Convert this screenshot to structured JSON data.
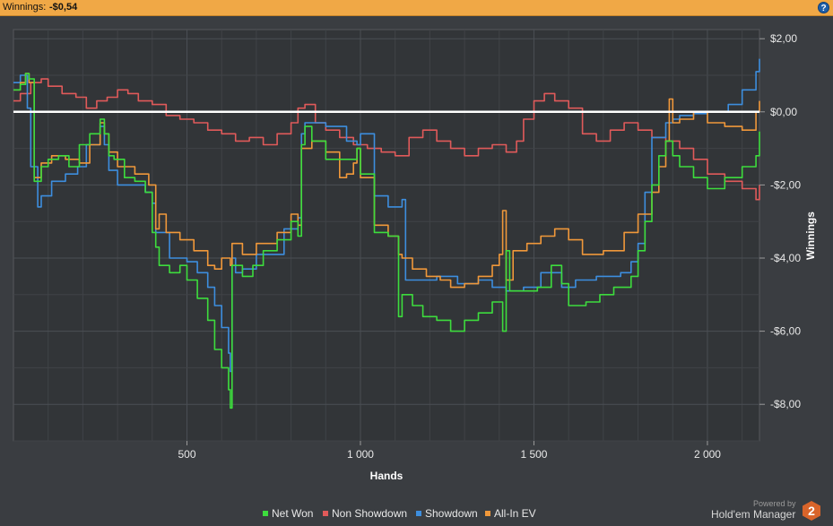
{
  "header": {
    "label": "Winnings:",
    "value": "-$0,54"
  },
  "help_icon": "?",
  "powered": {
    "line1": "Powered by",
    "line2": "Hold'em Manager",
    "logo_number": "2"
  },
  "colors": {
    "net_won": "#3ddc3d",
    "non_showdown": "#e05a5a",
    "showdown": "#3d8ede",
    "all_in_ev": "#f0983a",
    "zero_line": "#ffffff"
  },
  "chart_data": {
    "type": "line",
    "xlabel": "Hands",
    "ylabel": "Winnings",
    "xlim": [
      0,
      2150
    ],
    "ylim": [
      -9,
      2.25
    ],
    "x_ticks": [
      500,
      1000,
      1500,
      2000
    ],
    "x_tick_labels": [
      "500",
      "1 000",
      "1 500",
      "2 000"
    ],
    "y_ticks": [
      2,
      0,
      -2,
      -4,
      -6,
      -8
    ],
    "y_tick_labels": [
      "$2,00",
      "$0,00",
      "-$2,00",
      "-$4,00",
      "-$6,00",
      "-$8,00"
    ],
    "grid": true,
    "legend_position": "bottom",
    "series": [
      {
        "name": "Net Won",
        "color": "#3ddc3d",
        "x": [
          0,
          20,
          35,
          45,
          60,
          80,
          100,
          130,
          160,
          190,
          220,
          250,
          262,
          275,
          290,
          320,
          350,
          380,
          400,
          410,
          420,
          450,
          480,
          500,
          530,
          560,
          580,
          600,
          620,
          625,
          630,
          660,
          690,
          720,
          760,
          800,
          820,
          830,
          840,
          860,
          900,
          950,
          980,
          990,
          1000,
          1040,
          1080,
          1110,
          1120,
          1150,
          1180,
          1220,
          1260,
          1300,
          1340,
          1380,
          1410,
          1420,
          1430,
          1470,
          1510,
          1550,
          1580,
          1600,
          1620,
          1650,
          1690,
          1730,
          1780,
          1800,
          1820,
          1840,
          1860,
          1880,
          1900,
          1920,
          1960,
          2000,
          2050,
          2100,
          2140,
          2150
        ],
        "y": [
          0.6,
          0.75,
          1.05,
          0.9,
          -1.9,
          -1.5,
          -1.3,
          -1.2,
          -1.5,
          -0.9,
          -0.6,
          -0.2,
          -0.6,
          -1.2,
          -1.3,
          -1.8,
          -1.9,
          -2.2,
          -3.3,
          -3.7,
          -4.2,
          -4.4,
          -4.2,
          -4.6,
          -5.1,
          -5.7,
          -6.5,
          -7.0,
          -7.6,
          -8.1,
          -4.2,
          -4.5,
          -4.2,
          -3.8,
          -3.5,
          -3.0,
          -3.4,
          -0.9,
          -0.4,
          -0.8,
          -1.3,
          -1.3,
          -1.3,
          -1.0,
          -1.7,
          -3.3,
          -3.4,
          -5.6,
          -5.0,
          -5.3,
          -5.6,
          -5.7,
          -6.0,
          -5.7,
          -5.5,
          -5.2,
          -6.0,
          -3.8,
          -4.9,
          -4.9,
          -4.8,
          -4.2,
          -4.7,
          -5.3,
          -5.3,
          -5.2,
          -5.0,
          -4.8,
          -4.5,
          -3.8,
          -3.0,
          -2.0,
          -1.2,
          -0.8,
          -1.2,
          -1.5,
          -1.8,
          -2.1,
          -1.8,
          -1.5,
          -1.2,
          -0.54
        ]
      },
      {
        "name": "Non Showdown",
        "color": "#e05a5a",
        "x": [
          0,
          20,
          50,
          80,
          100,
          140,
          180,
          210,
          240,
          270,
          300,
          330,
          360,
          400,
          440,
          480,
          520,
          560,
          600,
          640,
          680,
          720,
          760,
          800,
          820,
          840,
          870,
          900,
          940,
          980,
          1020,
          1060,
          1100,
          1140,
          1180,
          1220,
          1260,
          1300,
          1340,
          1380,
          1420,
          1450,
          1470,
          1500,
          1530,
          1560,
          1600,
          1640,
          1680,
          1720,
          1760,
          1800,
          1840,
          1880,
          1920,
          1960,
          2000,
          2050,
          2100,
          2140,
          2150
        ],
        "y": [
          0.3,
          0.5,
          0.8,
          0.9,
          0.7,
          0.5,
          0.4,
          0.1,
          0.3,
          0.4,
          0.6,
          0.5,
          0.3,
          0.2,
          -0.1,
          -0.2,
          -0.3,
          -0.5,
          -0.6,
          -0.8,
          -0.7,
          -0.9,
          -0.6,
          -0.3,
          0.1,
          0.2,
          -0.3,
          -0.5,
          -0.7,
          -0.9,
          -1.0,
          -1.1,
          -1.2,
          -0.7,
          -0.5,
          -0.8,
          -1.0,
          -1.2,
          -1.0,
          -0.9,
          -1.1,
          -0.8,
          -0.2,
          0.3,
          0.5,
          0.3,
          0.1,
          -0.6,
          -0.8,
          -0.5,
          -0.3,
          -0.5,
          -0.7,
          -0.8,
          -1.0,
          -1.3,
          -1.7,
          -1.9,
          -2.1,
          -2.4,
          -2.0
        ]
      },
      {
        "name": "Showdown",
        "color": "#3d8ede",
        "x": [
          0,
          20,
          40,
          50,
          70,
          80,
          110,
          150,
          185,
          210,
          250,
          262,
          275,
          300,
          380,
          400,
          410,
          450,
          500,
          530,
          560,
          580,
          600,
          620,
          625,
          630,
          640,
          660,
          700,
          780,
          820,
          830,
          840,
          900,
          960,
          990,
          1000,
          1040,
          1080,
          1100,
          1120,
          1130,
          1180,
          1220,
          1280,
          1340,
          1380,
          1420,
          1470,
          1520,
          1580,
          1620,
          1680,
          1750,
          1780,
          1800,
          1820,
          1840,
          1880,
          1900,
          1920,
          1960,
          2000,
          2060,
          2100,
          2140,
          2150
        ],
        "y": [
          0.8,
          1.0,
          0.1,
          -1.5,
          -2.6,
          -2.3,
          -1.9,
          -1.7,
          -1.5,
          -0.9,
          -0.4,
          -0.9,
          -1.6,
          -2.0,
          -2.2,
          -2.5,
          -3.3,
          -4.0,
          -4.1,
          -4.4,
          -4.8,
          -5.3,
          -5.9,
          -6.6,
          -7.1,
          -4.0,
          -4.4,
          -4.3,
          -3.9,
          -3.2,
          -2.9,
          -0.6,
          -0.3,
          -0.4,
          -0.8,
          -0.9,
          -0.6,
          -2.3,
          -2.6,
          -2.6,
          -2.4,
          -4.6,
          -4.6,
          -4.5,
          -4.7,
          -4.6,
          -4.8,
          -4.9,
          -4.8,
          -4.4,
          -4.8,
          -4.6,
          -4.5,
          -4.4,
          -4.1,
          -3.6,
          -2.2,
          -0.7,
          -0.3,
          -0.2,
          -0.1,
          -0.05,
          0.0,
          0.2,
          0.6,
          1.1,
          1.45
        ]
      },
      {
        "name": "All-In EV",
        "color": "#f0983a",
        "x": [
          0,
          20,
          35,
          45,
          60,
          80,
          110,
          150,
          190,
          220,
          250,
          262,
          275,
          300,
          350,
          390,
          410,
          420,
          440,
          480,
          520,
          560,
          580,
          600,
          625,
          630,
          660,
          700,
          760,
          800,
          820,
          830,
          860,
          900,
          940,
          960,
          980,
          990,
          1000,
          1040,
          1080,
          1110,
          1120,
          1150,
          1190,
          1230,
          1260,
          1300,
          1340,
          1380,
          1400,
          1410,
          1420,
          1440,
          1480,
          1520,
          1560,
          1600,
          1640,
          1700,
          1760,
          1800,
          1840,
          1860,
          1880,
          1890,
          1900,
          1920,
          1960,
          2000,
          2050,
          2100,
          2140,
          2150
        ],
        "y": [
          0.6,
          0.8,
          1.05,
          0.8,
          -1.8,
          -1.4,
          -1.2,
          -1.3,
          -1.4,
          -0.9,
          -0.3,
          -0.6,
          -1.1,
          -1.5,
          -1.7,
          -2.0,
          -3.2,
          -2.8,
          -3.3,
          -3.5,
          -3.8,
          -4.2,
          -4.3,
          -4.0,
          -4.2,
          -3.6,
          -3.9,
          -3.6,
          -3.3,
          -2.8,
          -3.1,
          -1.0,
          -0.8,
          -1.1,
          -1.8,
          -1.7,
          -1.4,
          -1.0,
          -1.8,
          -3.1,
          -3.4,
          -3.9,
          -4.0,
          -4.3,
          -4.5,
          -4.6,
          -4.8,
          -4.7,
          -4.5,
          -4.2,
          -3.9,
          -2.7,
          -4.6,
          -3.8,
          -3.6,
          -3.4,
          -3.2,
          -3.5,
          -3.9,
          -3.8,
          -3.3,
          -2.8,
          -2.2,
          -1.5,
          -0.8,
          0.35,
          -0.3,
          -0.2,
          0.0,
          -0.3,
          -0.4,
          -0.5,
          0.0,
          0.3
        ]
      }
    ]
  }
}
